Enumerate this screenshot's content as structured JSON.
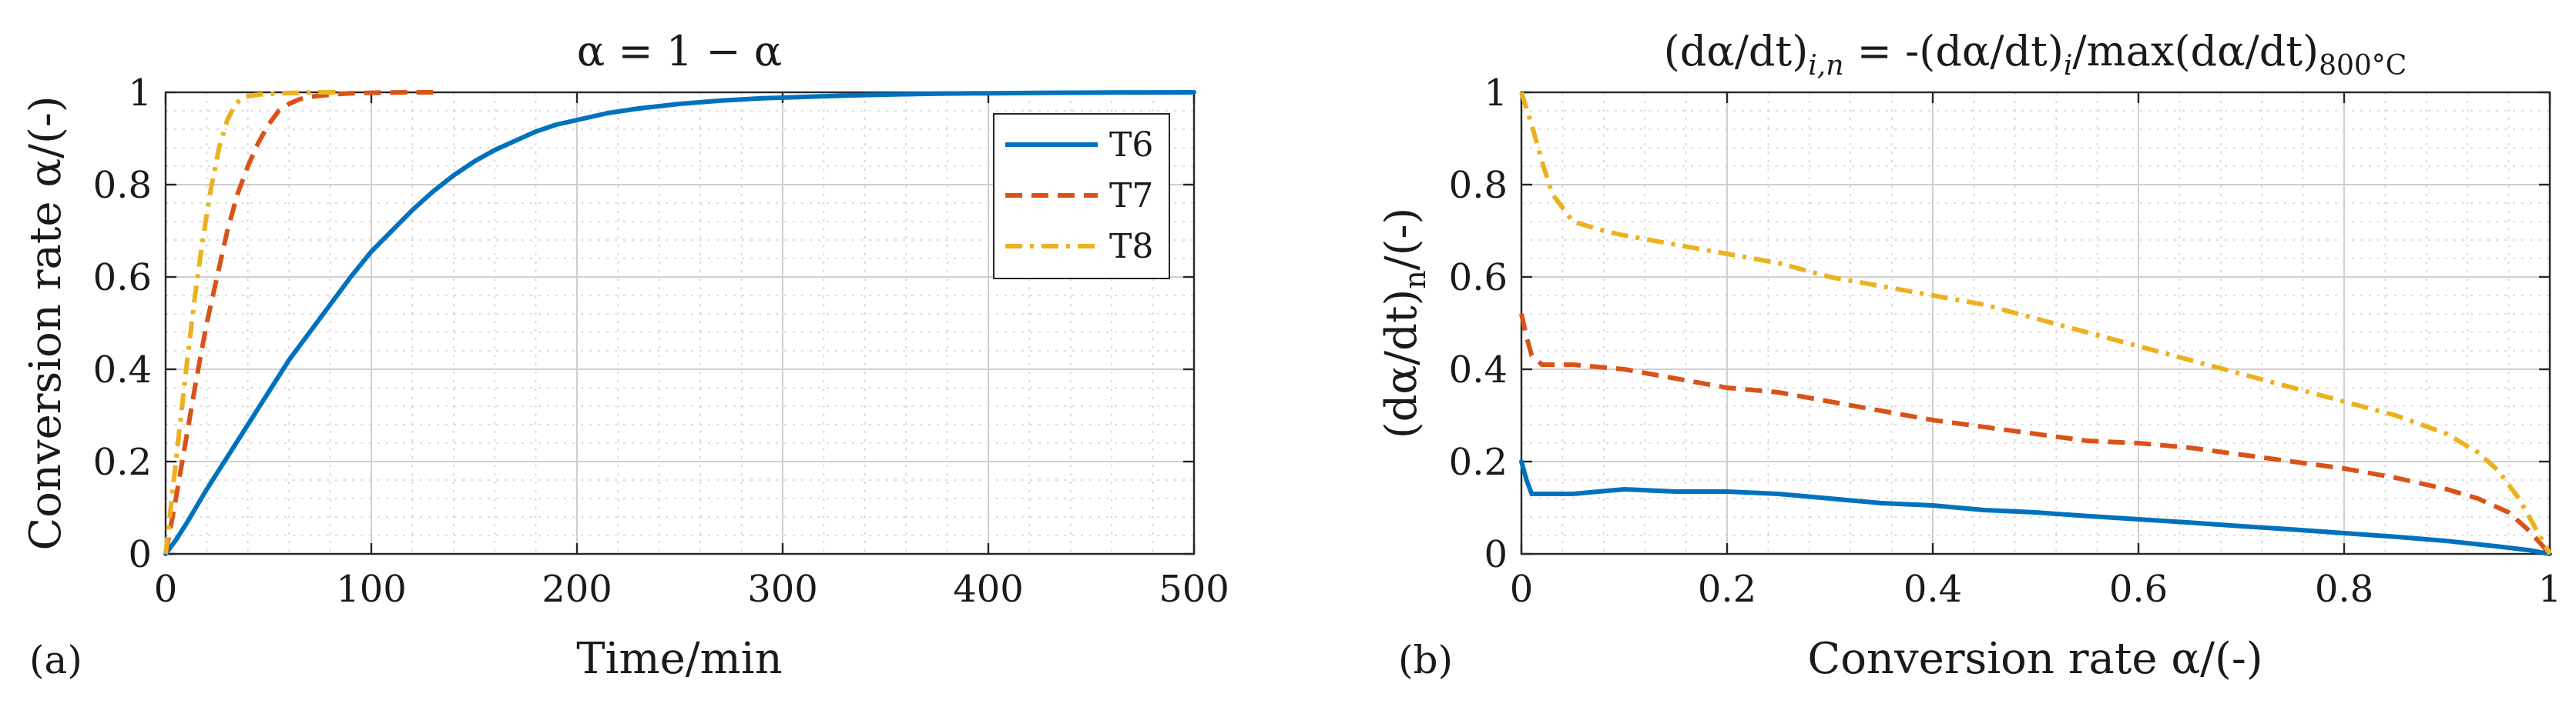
{
  "chart_data": [
    {
      "panel": "(a)",
      "type": "line",
      "title": "α = 1 − α",
      "xlabel": "Time/min",
      "ylabel": "Conversion rate α/(-)",
      "xlim": [
        0,
        500
      ],
      "ylim": [
        0,
        1
      ],
      "xticks": [
        "0",
        "100",
        "200",
        "300",
        "400",
        "500"
      ],
      "yticks": [
        "0",
        "0.2",
        "0.4",
        "0.6",
        "0.8",
        "1"
      ],
      "grid": "major and minor",
      "legend": {
        "position": "top-right",
        "entries": [
          "T6",
          "T7",
          "T8"
        ]
      },
      "series": [
        {
          "name": "T6",
          "color": "#0072BD",
          "dash": "solid",
          "x": [
            0,
            5,
            10,
            20,
            30,
            40,
            50,
            60,
            70,
            80,
            90,
            100,
            110,
            120,
            130,
            140,
            150,
            160,
            170,
            180,
            190,
            200,
            215,
            230,
            250,
            270,
            290,
            310,
            330,
            350,
            375,
            400,
            430,
            460,
            500
          ],
          "y": [
            0,
            0.03,
            0.065,
            0.14,
            0.21,
            0.28,
            0.35,
            0.42,
            0.48,
            0.54,
            0.6,
            0.655,
            0.7,
            0.745,
            0.785,
            0.82,
            0.85,
            0.875,
            0.895,
            0.915,
            0.93,
            0.94,
            0.955,
            0.965,
            0.975,
            0.982,
            0.987,
            0.99,
            0.993,
            0.995,
            0.997,
            0.998,
            0.999,
            0.9995,
            1.0
          ]
        },
        {
          "name": "T7",
          "color": "#D95319",
          "dash": "dashed",
          "x": [
            0,
            5,
            10,
            15,
            20,
            25,
            30,
            35,
            40,
            45,
            50,
            55,
            60,
            65,
            70,
            80,
            90,
            100,
            115,
            130
          ],
          "y": [
            0,
            0.12,
            0.25,
            0.38,
            0.5,
            0.6,
            0.7,
            0.78,
            0.84,
            0.89,
            0.93,
            0.96,
            0.975,
            0.985,
            0.99,
            0.995,
            0.998,
            0.999,
            1.0,
            1.0
          ]
        },
        {
          "name": "T8",
          "color": "#EDB120",
          "dash": "dash-dot",
          "x": [
            0,
            3,
            6,
            10,
            14,
            18,
            22,
            26,
            30,
            34,
            38,
            45,
            55,
            65,
            75,
            85
          ],
          "y": [
            0,
            0.12,
            0.24,
            0.4,
            0.55,
            0.68,
            0.79,
            0.88,
            0.94,
            0.975,
            0.99,
            0.995,
            0.998,
            0.999,
            1.0,
            1.0
          ]
        }
      ]
    },
    {
      "panel": "(b)",
      "type": "line",
      "title": "(dα/dt)i,n = -(dα/dt)i/max(dα/dt)800°C",
      "title_parts": {
        "lhs": "(dα/dt)",
        "lhs_sub": "i,n",
        "mid": " = -(dα/dt)",
        "mid_sub": "i",
        "rhs": "/max(dα/dt)",
        "rhs_sub": "800°C"
      },
      "xlabel": "Conversion rate α/(-)",
      "ylabel": "(dα/dt)n/(-)",
      "ylabel_parts": {
        "base": "(dα/dt)",
        "sub": "n",
        "tail": "/(-)"
      },
      "xlim": [
        0,
        1
      ],
      "ylim": [
        0,
        1
      ],
      "xticks": [
        "0",
        "0.2",
        "0.4",
        "0.6",
        "0.8",
        "1"
      ],
      "yticks": [
        "0",
        "0.2",
        "0.4",
        "0.6",
        "0.8",
        "1"
      ],
      "grid": "major and minor",
      "series": [
        {
          "name": "T6",
          "color": "#0072BD",
          "dash": "solid",
          "x": [
            0,
            0.005,
            0.01,
            0.02,
            0.05,
            0.1,
            0.15,
            0.2,
            0.25,
            0.3,
            0.35,
            0.4,
            0.45,
            0.5,
            0.55,
            0.6,
            0.65,
            0.7,
            0.75,
            0.8,
            0.85,
            0.9,
            0.95,
            0.98,
            1.0
          ],
          "y": [
            0.2,
            0.16,
            0.13,
            0.13,
            0.13,
            0.14,
            0.135,
            0.135,
            0.13,
            0.12,
            0.11,
            0.105,
            0.095,
            0.09,
            0.082,
            0.075,
            0.068,
            0.06,
            0.053,
            0.045,
            0.037,
            0.028,
            0.016,
            0.008,
            0.0
          ]
        },
        {
          "name": "T7",
          "color": "#D95319",
          "dash": "dashed",
          "x": [
            0,
            0.005,
            0.01,
            0.02,
            0.05,
            0.1,
            0.15,
            0.2,
            0.25,
            0.3,
            0.35,
            0.4,
            0.45,
            0.5,
            0.55,
            0.6,
            0.65,
            0.7,
            0.75,
            0.8,
            0.85,
            0.9,
            0.93,
            0.96,
            0.98,
            1.0
          ],
          "y": [
            0.52,
            0.47,
            0.43,
            0.41,
            0.41,
            0.4,
            0.38,
            0.36,
            0.35,
            0.33,
            0.31,
            0.29,
            0.275,
            0.26,
            0.245,
            0.24,
            0.23,
            0.215,
            0.2,
            0.185,
            0.165,
            0.14,
            0.12,
            0.09,
            0.05,
            0.0
          ]
        },
        {
          "name": "T8",
          "color": "#EDB120",
          "dash": "dash-dot",
          "x": [
            0,
            0.01,
            0.02,
            0.03,
            0.05,
            0.08,
            0.1,
            0.15,
            0.2,
            0.25,
            0.3,
            0.35,
            0.4,
            0.45,
            0.5,
            0.55,
            0.6,
            0.65,
            0.7,
            0.75,
            0.8,
            0.85,
            0.9,
            0.93,
            0.95,
            0.97,
            0.98,
            0.99,
            1.0
          ],
          "y": [
            1.0,
            0.93,
            0.85,
            0.78,
            0.72,
            0.7,
            0.69,
            0.67,
            0.65,
            0.63,
            0.6,
            0.58,
            0.56,
            0.54,
            0.51,
            0.48,
            0.45,
            0.42,
            0.39,
            0.36,
            0.33,
            0.3,
            0.26,
            0.22,
            0.18,
            0.12,
            0.08,
            0.04,
            0.0
          ]
        }
      ]
    }
  ]
}
